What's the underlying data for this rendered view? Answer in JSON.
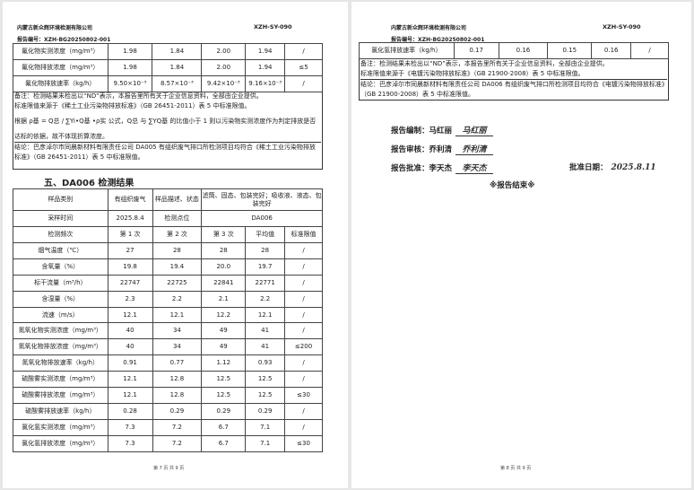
{
  "left_page": {
    "company": "内蒙古新众辉环境检测有限公司",
    "doc_code": "XZH-SY-090",
    "report_no": "报告编号：XZH-BG20250802-001",
    "top_table": [
      [
        "氟化物实测浓度（mg/m³）",
        "1.98",
        "1.84",
        "2.00",
        "1.94",
        "/"
      ],
      [
        "氟化物排放浓度（mg/m³）",
        "1.98",
        "1.84",
        "2.00",
        "1.94",
        "≤5"
      ],
      [
        "氟化物排放速率（kg/h）",
        "9.50×10⁻³",
        "8.57×10⁻³",
        "9.42×10⁻³",
        "9.16×10⁻³",
        "/"
      ]
    ],
    "remark_1": "备注：检测结果未检出以“ND”表示，本报告里所有关于企业信息资料，全部由企业提供。",
    "remark_2": "标准限值来源于《稀土工业污染物排放标准》（GB 26451-2011）表 5 中标准限值。",
    "formula_text": "根据 ρ基 = Q总 / ∑Yi•Q基 •ρ实 公式，Q总 与 ∑YQ基 的比值小于 1 则以污染物实测浓度作为判定排放是否",
    "formula_text_2": "达标的依据，故不体现折算浓度。",
    "conclusion": "结论：巴彦淖尔市同晨新材料有限责任公司 DA005 有组织废气排口所检测项目均符合《稀土工业污染物排放标准》（GB 26451-2011）表 5 中标准限值。",
    "section_title": "五、DA006 检测结果",
    "info": {
      "sample_type_label": "样品类别",
      "sample_type": "有组织废气",
      "desc_label": "样品描述、状态",
      "desc": "滤筒、固态、包装完好；吸收液、液态、包装完好",
      "time_label": "采样时间",
      "time": "2025.8.4",
      "point_label": "检测点位",
      "point": "DA006",
      "headers": [
        "检测频次",
        "第 1 次",
        "第 2 次",
        "第 3 次",
        "平均值",
        "标准限值"
      ]
    },
    "rows": [
      [
        "烟气温度（℃）",
        "27",
        "28",
        "28",
        "28",
        "/"
      ],
      [
        "含氧量（%）",
        "19.8",
        "19.4",
        "20.0",
        "19.7",
        "/"
      ],
      [
        "标干流量（m³/h）",
        "22747",
        "22725",
        "22841",
        "22771",
        "/"
      ],
      [
        "含湿量（%）",
        "2.3",
        "2.2",
        "2.1",
        "2.2",
        "/"
      ],
      [
        "流速（m/s）",
        "12.1",
        "12.1",
        "12.2",
        "12.1",
        "/"
      ],
      [
        "氮氧化物实测浓度（mg/m³）",
        "40",
        "34",
        "49",
        "41",
        "/"
      ],
      [
        "氮氧化物排放浓度（mg/m³）",
        "40",
        "34",
        "49",
        "41",
        "≤200"
      ],
      [
        "氮氧化物排放速率（kg/h）",
        "0.91",
        "0.77",
        "1.12",
        "0.93",
        "/"
      ],
      [
        "硫酸雾实测浓度（mg/m³）",
        "12.1",
        "12.8",
        "12.5",
        "12.5",
        "/"
      ],
      [
        "硫酸雾排放浓度（mg/m³）",
        "12.1",
        "12.8",
        "12.5",
        "12.5",
        "≤30"
      ],
      [
        "硫酸雾排放速率（kg/h）",
        "0.28",
        "0.29",
        "0.29",
        "0.29",
        "/"
      ],
      [
        "氯化氢实测浓度（mg/m³）",
        "7.3",
        "7.2",
        "6.7",
        "7.1",
        "/"
      ],
      [
        "氯化氢排放浓度（mg/m³）",
        "7.3",
        "7.2",
        "6.7",
        "7.1",
        "≤30"
      ]
    ],
    "footer": "第 7 页 共 9 页"
  },
  "right_page": {
    "company": "内蒙古新众辉环境检测有限公司",
    "doc_code": "XZH-SY-090",
    "report_no": "报告编号：XZH-BG20250802-001",
    "top_table": [
      [
        "氯化氢排放速率（kg/h）",
        "0.17",
        "0.16",
        "0.15",
        "0.16",
        "/"
      ]
    ],
    "remark_1": "备注：检测结果未检出以“ND”表示，本报告里所有关于企业信息资料，全部由企业提供。",
    "remark_2": "标准限值来源于《电镀污染物排放标准》（GB 21900-2008）表 5 中标准限值。",
    "conclusion": "结论：巴彦淖尔市同晨新材料有限责任公司 DA006 有组织废气排口所检测项目均符合《电镀污染物排放标准》（GB 21900-2008）表 5 中标准限值。",
    "compiled_label": "报告编制：马红丽",
    "compiled_sig": "马红丽",
    "reviewed_label": "报告审核：乔利清",
    "reviewed_sig": "乔利清",
    "approved_label": "报告批准：李天杰",
    "approved_sig": "李天杰",
    "approve_date_label": "批准日期：",
    "approve_date": "2025.8.11",
    "end_mark": "※报告结束※",
    "footer": "第 8 页 共 9 页"
  }
}
